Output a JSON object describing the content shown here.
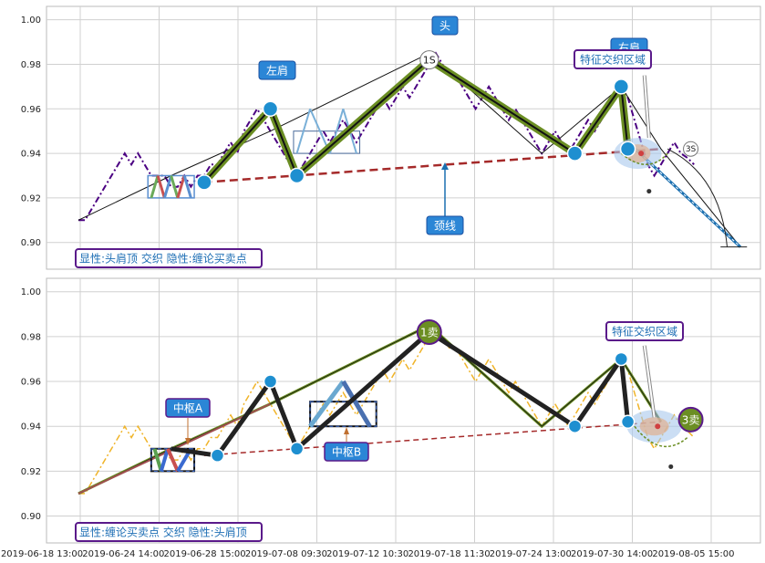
{
  "chart_data": [
    {
      "type": "line",
      "panel": "top",
      "ylim": [
        0.888,
        1.006
      ],
      "y_ticks": [
        "1.00",
        "0.98",
        "0.96",
        "0.94",
        "0.92",
        "0.90"
      ],
      "y_tick_values": [
        1.0,
        0.98,
        0.96,
        0.94,
        0.92,
        0.9
      ],
      "legend": "显性:头肩顶 交织 隐性:缠论买卖点",
      "price_color": "#4b0082",
      "price": [
        0.91,
        0.91,
        0.915,
        0.92,
        0.925,
        0.93,
        0.935,
        0.94,
        0.935,
        0.94,
        0.935,
        0.93,
        0.93,
        0.93,
        0.925,
        0.925,
        0.93,
        0.925,
        0.93,
        0.93,
        0.935,
        0.935,
        0.94,
        0.945,
        0.94,
        0.95,
        0.955,
        0.96,
        0.955,
        0.95,
        0.945,
        0.94,
        0.935,
        0.93,
        0.935,
        0.94,
        0.945,
        0.95,
        0.945,
        0.95,
        0.955,
        0.95,
        0.945,
        0.95,
        0.955,
        0.96,
        0.965,
        0.96,
        0.965,
        0.97,
        0.965,
        0.97,
        0.975,
        0.98,
        0.985,
        0.98,
        0.975,
        0.975,
        0.97,
        0.965,
        0.96,
        0.965,
        0.97,
        0.965,
        0.96,
        0.955,
        0.96,
        0.955,
        0.95,
        0.945,
        0.94,
        0.945,
        0.95,
        0.945,
        0.94,
        0.945,
        0.95,
        0.955,
        0.95,
        0.955,
        0.96,
        0.965,
        0.97,
        0.965,
        0.955,
        0.945,
        0.935,
        0.93,
        0.935,
        0.94,
        0.945,
        0.94,
        0.938,
        0.935
      ],
      "bi_thin": [
        [
          0,
          0.91
        ],
        [
          14,
          0.93
        ],
        [
          29,
          0.95
        ],
        [
          53,
          0.985
        ],
        [
          70,
          0.94
        ],
        [
          82,
          0.97
        ],
        [
          88,
          0.942
        ],
        [
          100,
          0.898
        ]
      ],
      "bi_thick": [
        [
          19,
          0.927
        ],
        [
          29,
          0.96
        ],
        [
          33,
          0.93
        ],
        [
          53,
          0.982
        ],
        [
          75,
          0.94
        ],
        [
          82,
          0.97
        ],
        [
          83,
          0.942
        ]
      ],
      "zs_lines": [
        [
          11,
          0.92
        ],
        [
          12,
          0.93
        ],
        [
          13,
          0.92
        ],
        [
          14,
          0.93
        ],
        [
          15,
          0.92
        ],
        [
          16,
          0.93
        ],
        [
          17,
          0.92
        ]
      ],
      "zs_lines2": [
        [
          33,
          0.94
        ],
        [
          35,
          0.96
        ],
        [
          38,
          0.94
        ],
        [
          40,
          0.96
        ],
        [
          42,
          0.94
        ]
      ],
      "neckline": [
        [
          19,
          0.927
        ],
        [
          88,
          0.942
        ]
      ],
      "breakdown": [
        [
          83,
          0.945
        ],
        [
          100,
          0.898
        ]
      ],
      "points": [
        {
          "x": 19,
          "y": 0.927,
          "label": ""
        },
        {
          "x": 29,
          "y": 0.96,
          "label": "左肩"
        },
        {
          "x": 33,
          "y": 0.93,
          "label": ""
        },
        {
          "x": 53,
          "y": 0.982,
          "label": "1S"
        },
        {
          "x": 75,
          "y": 0.94,
          "label": ""
        },
        {
          "x": 82,
          "y": 0.97,
          "label": "右肩"
        },
        {
          "x": 83,
          "y": 0.942,
          "label": ""
        }
      ],
      "annotations": {
        "head": "头",
        "left_shoulder": "左肩",
        "right_shoulder": "右肩",
        "neckline": "颈线",
        "zone": "特征交织区域",
        "s3": "3S",
        "s1": "1S"
      }
    },
    {
      "type": "line",
      "panel": "bottom",
      "ylim": [
        0.888,
        1.006
      ],
      "y_ticks": [
        "1.00",
        "0.98",
        "0.96",
        "0.94",
        "0.92",
        "0.90"
      ],
      "y_tick_values": [
        1.0,
        0.98,
        0.96,
        0.94,
        0.92,
        0.9
      ],
      "legend": "显性:缠论买卖点 交织 隐性:头肩顶",
      "price_color": "#f0b429",
      "x_ticks": [
        "2019-06-18 13:00",
        "2019-06-24 14:00",
        "2019-06-28 15:00",
        "2019-07-08 09:30",
        "2019-07-12 10:30",
        "2019-07-18 11:30",
        "2019-07-24 13:00",
        "2019-07-30 14:00",
        "2019-08-05 15:00"
      ],
      "zs_a_label": "中枢A",
      "zs_b_label": "中枢B",
      "zone": "特征交织区域",
      "sell1": "1卖",
      "sell3": "3卖",
      "bi_black": [
        [
          14,
          0.93
        ],
        [
          21,
          0.927
        ],
        [
          29,
          0.96
        ],
        [
          33,
          0.93
        ],
        [
          53,
          0.982
        ],
        [
          75,
          0.94
        ],
        [
          82,
          0.97
        ],
        [
          83,
          0.942
        ]
      ],
      "bi_thin_green": [
        [
          0,
          0.91
        ],
        [
          14,
          0.93
        ],
        [
          29,
          0.95
        ],
        [
          53,
          0.985
        ],
        [
          70,
          0.94
        ],
        [
          82,
          0.97
        ],
        [
          88,
          0.942
        ]
      ],
      "neckline": [
        [
          19,
          0.927
        ],
        [
          88,
          0.942
        ]
      ]
    }
  ]
}
